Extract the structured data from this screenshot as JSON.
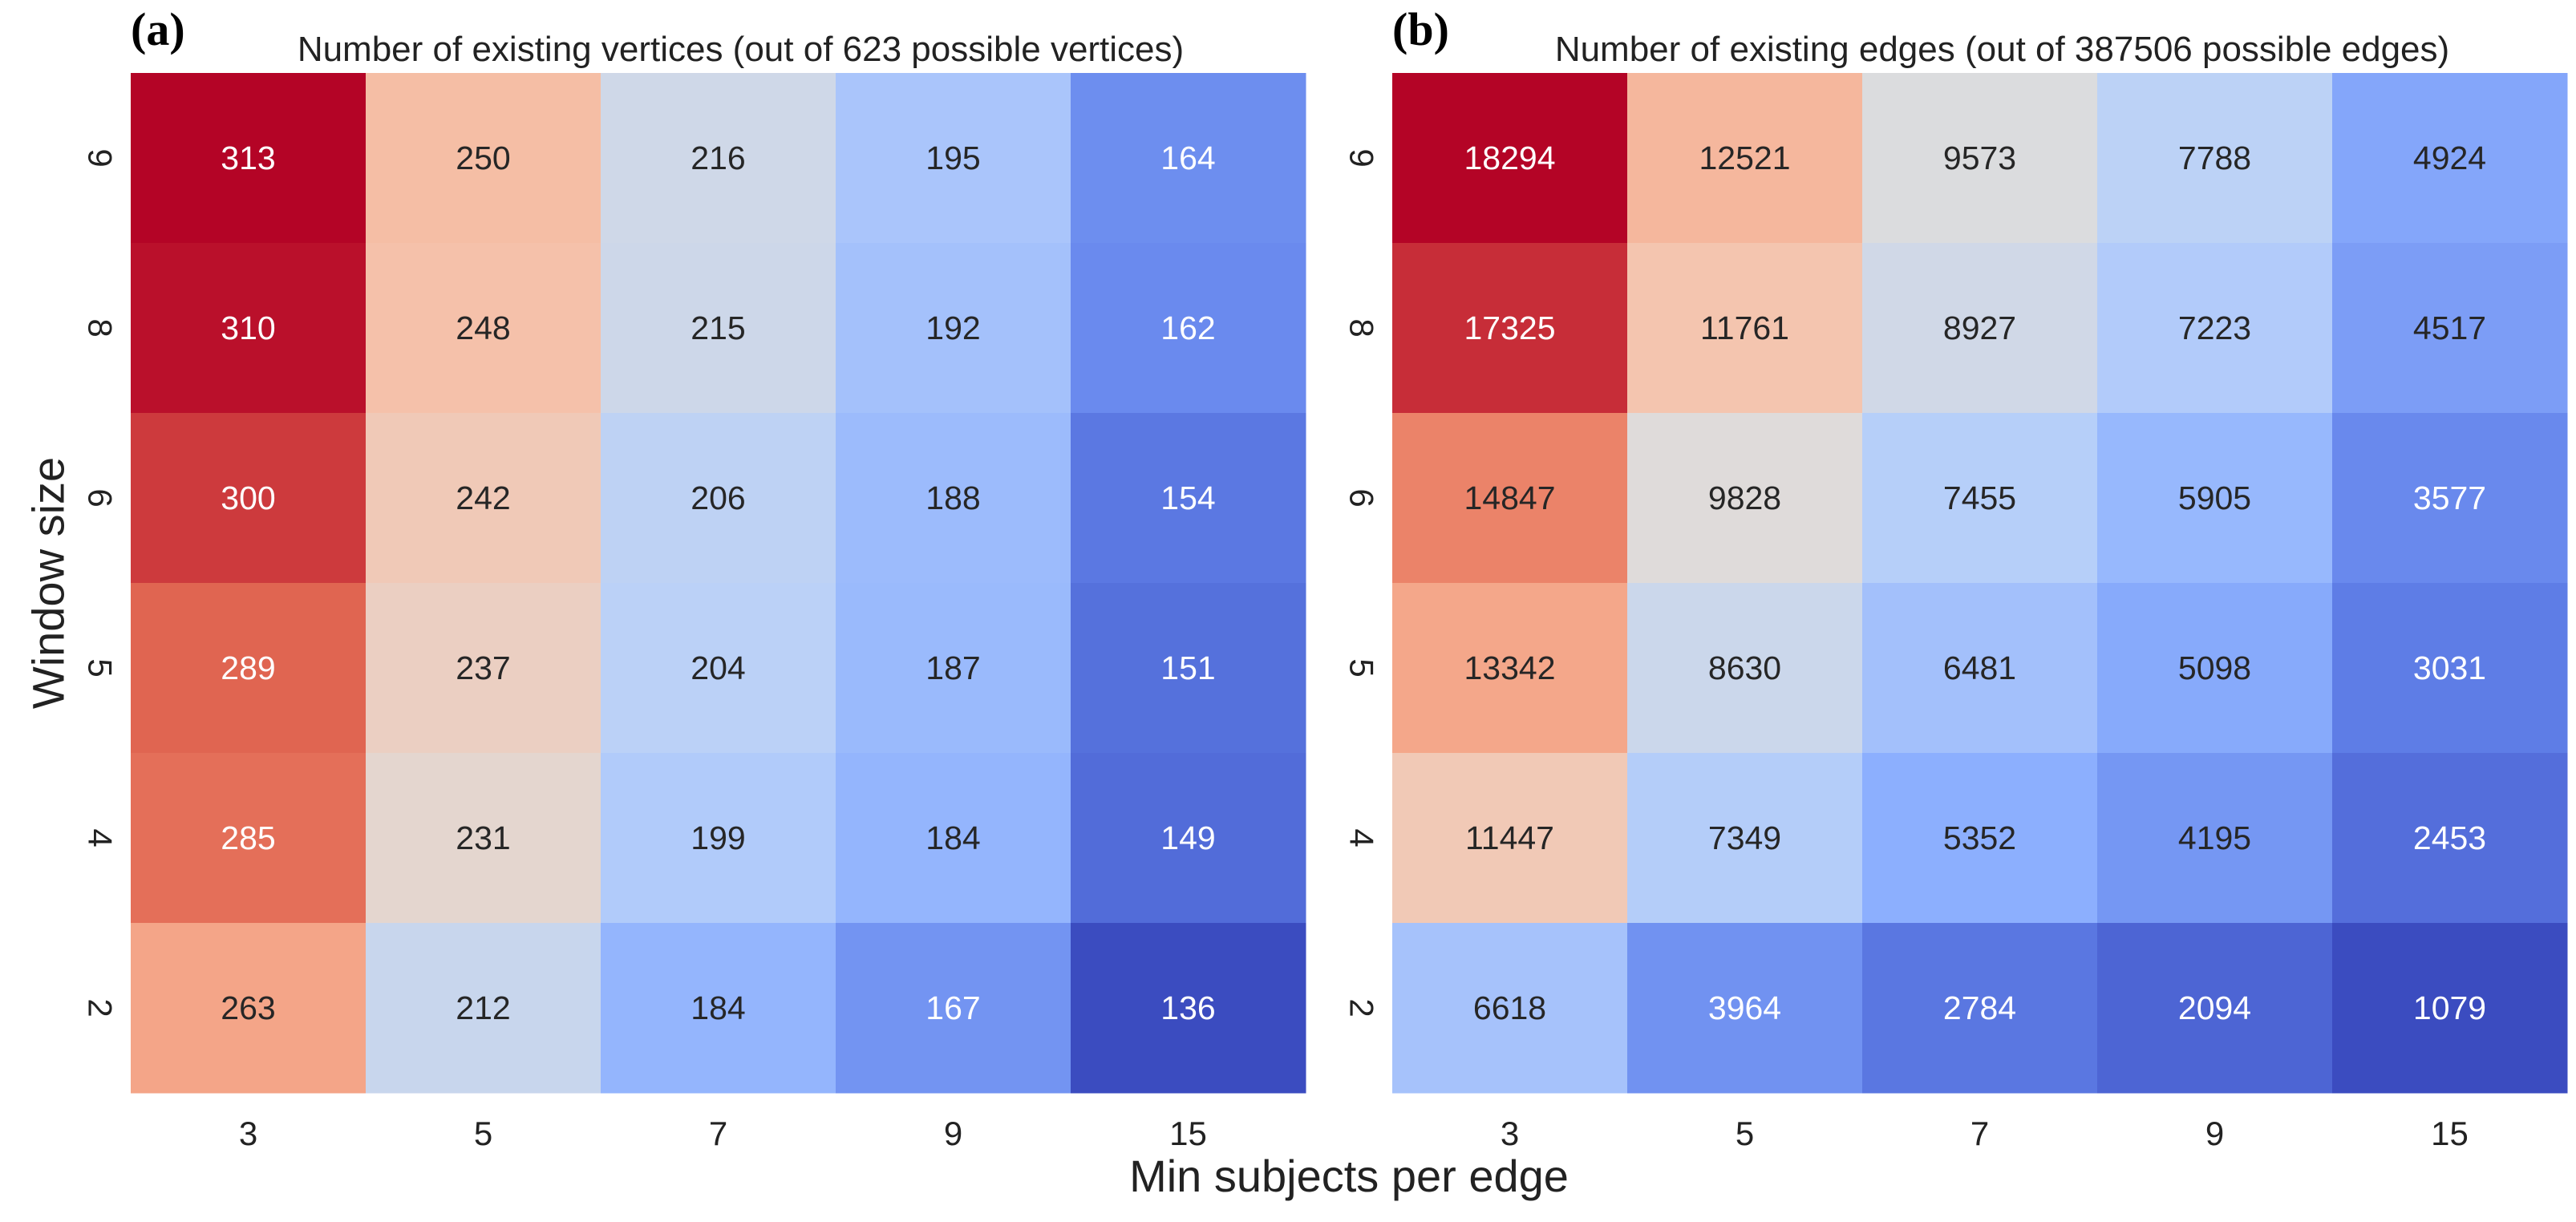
{
  "chart_data": {
    "type": "heatmap",
    "xlabel": "Min subjects per edge",
    "ylabel": "Window size",
    "x_categories": [
      "3",
      "5",
      "7",
      "9",
      "15"
    ],
    "y_categories": [
      "9",
      "8",
      "6",
      "5",
      "4",
      "2"
    ],
    "colormap": "coolwarm",
    "panels": [
      {
        "label": "(a)",
        "title": "Number of existing vertices (out of 623 possible vertices)",
        "values": [
          [
            313,
            250,
            216,
            195,
            164
          ],
          [
            310,
            248,
            215,
            192,
            162
          ],
          [
            300,
            242,
            206,
            188,
            154
          ],
          [
            289,
            237,
            204,
            187,
            151
          ],
          [
            285,
            231,
            199,
            184,
            149
          ],
          [
            263,
            212,
            184,
            167,
            136
          ]
        ]
      },
      {
        "label": "(b)",
        "title": "Number of existing edges (out of 387506 possible edges)",
        "values": [
          [
            18294,
            12521,
            9573,
            7788,
            4924
          ],
          [
            17325,
            11761,
            8927,
            7223,
            4517
          ],
          [
            14847,
            9828,
            7455,
            5905,
            3577
          ],
          [
            13342,
            8630,
            6481,
            5098,
            3031
          ],
          [
            11447,
            7349,
            5352,
            4195,
            2453
          ],
          [
            6618,
            3964,
            2784,
            2094,
            1079
          ]
        ]
      }
    ]
  }
}
